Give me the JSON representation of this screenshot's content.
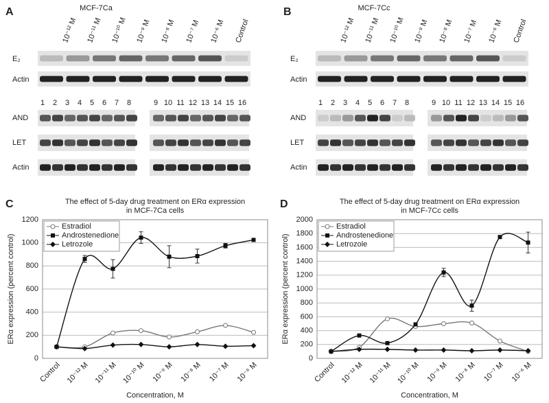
{
  "blots": [
    {
      "panel": "A",
      "cell_line": "MCF-7Ca",
      "lanes": [
        "10⁻¹² M",
        "10⁻¹¹ M",
        "10⁻¹⁰ M",
        "10⁻⁹ M",
        "10⁻⁸ M",
        "10⁻⁷ M",
        "10⁻⁶ M",
        "Control"
      ],
      "rows_top": [
        "E₂",
        "Actin"
      ],
      "lane_numbers": [
        "1",
        "2",
        "3",
        "4",
        "5",
        "6",
        "7",
        "8",
        "9",
        "10",
        "11",
        "12",
        "13",
        "14",
        "15",
        "16"
      ],
      "rows_bottom": [
        "AND",
        "LET",
        "Actin"
      ]
    },
    {
      "panel": "B",
      "cell_line": "MCF-7Cc",
      "lanes": [
        "10⁻¹² M",
        "10⁻¹¹ M",
        "10⁻¹⁰ M",
        "10⁻⁹ M",
        "10⁻⁸ M",
        "10⁻⁷ M",
        "10⁻⁶ M",
        "Control"
      ],
      "rows_top": [
        "E₂",
        "Actin"
      ],
      "lane_numbers": [
        "1",
        "2",
        "3",
        "4",
        "5",
        "6",
        "7",
        "8",
        "9",
        "10",
        "11",
        "12",
        "13",
        "14",
        "15",
        "16"
      ],
      "rows_bottom": [
        "AND",
        "LET",
        "Actin"
      ]
    }
  ],
  "chart_data": [
    {
      "type": "line",
      "panel": "C",
      "title": [
        "The effect of 5-day drug treatment on ERα expression",
        "in MCF-7Ca cells"
      ],
      "ylabel": "ERα expression (percent control)",
      "xlabel": "Concentration, M",
      "categories": [
        "Control",
        "10⁻¹² M",
        "10⁻¹¹ M",
        "10⁻¹⁰ M",
        "10⁻⁹ M",
        "10⁻⁸ M",
        "10⁻⁷ M",
        "10⁻⁶ M"
      ],
      "ylim": [
        0,
        1200
      ],
      "yticks": [
        0,
        200,
        400,
        600,
        800,
        1000,
        1200
      ],
      "grid": true,
      "legend": "upper-left",
      "series": [
        {
          "name": "Estradiol",
          "color": "#777777",
          "marker": "open-circle",
          "values": [
            100,
            100,
            220,
            240,
            185,
            230,
            285,
            225
          ]
        },
        {
          "name": "Androstenedione",
          "color": "#111111",
          "marker": "square",
          "values": [
            100,
            860,
            775,
            1045,
            880,
            885,
            975,
            1025
          ],
          "errors": [
            0,
            30,
            80,
            50,
            95,
            60,
            20,
            0
          ]
        },
        {
          "name": "Letrozole",
          "color": "#111111",
          "marker": "diamond",
          "values": [
            100,
            85,
            115,
            120,
            100,
            120,
            105,
            110
          ]
        }
      ]
    },
    {
      "type": "line",
      "panel": "D",
      "title": [
        "The effect of 5-day drug treatment on ERα expression",
        "in MCF-7Cc cells"
      ],
      "ylabel": "ERα expression (percent control)",
      "xlabel": "Concentration, M",
      "categories": [
        "Control",
        "10⁻¹² M",
        "10⁻¹¹ M",
        "10⁻¹⁰ M",
        "10⁻⁹ M",
        "10⁻⁸ M",
        "10⁻⁷ M",
        "10⁻⁶ M"
      ],
      "ylim": [
        0,
        2000
      ],
      "yticks": [
        0,
        200,
        400,
        600,
        800,
        1000,
        1200,
        1400,
        1600,
        1800,
        2000
      ],
      "grid": true,
      "legend": "upper-left",
      "series": [
        {
          "name": "Estradiol",
          "color": "#777777",
          "marker": "open-circle",
          "values": [
            100,
            160,
            570,
            460,
            500,
            510,
            250,
            100
          ]
        },
        {
          "name": "Androstenedione",
          "color": "#111111",
          "marker": "square",
          "values": [
            100,
            330,
            220,
            490,
            1240,
            760,
            1750,
            1670
          ],
          "errors": [
            0,
            0,
            0,
            0,
            60,
            80,
            0,
            150
          ]
        },
        {
          "name": "Letrozole",
          "color": "#111111",
          "marker": "diamond",
          "values": [
            100,
            130,
            130,
            120,
            120,
            110,
            120,
            110
          ]
        }
      ]
    }
  ]
}
